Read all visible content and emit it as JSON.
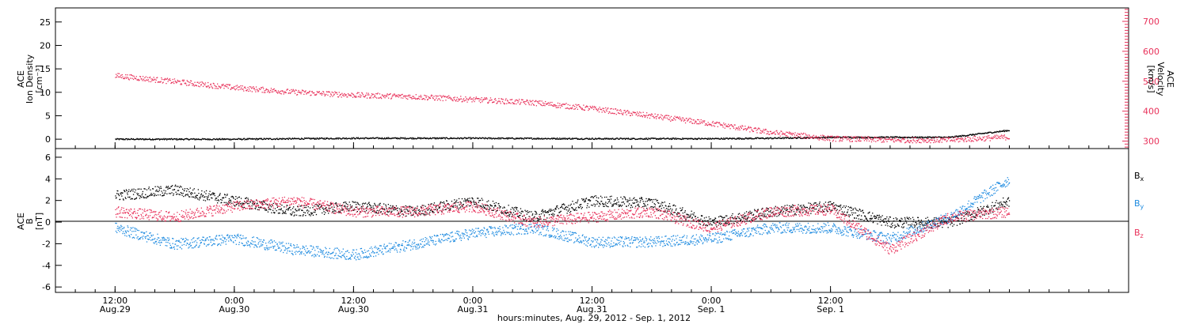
{
  "chart_data": [
    {
      "type": "scatter",
      "panel": "top",
      "ylabel_left": [
        "ACE",
        "Ion Density",
        "[cm⁻³]"
      ],
      "ylabel_right": [
        "ACE",
        "Velocity",
        "[km/s]"
      ],
      "left_ylim": [
        -2,
        28
      ],
      "left_yticks": [
        "0",
        "5",
        "10",
        "15",
        "20",
        "25"
      ],
      "right_ylim": [
        275,
        745
      ],
      "right_yticks": [
        "300",
        "400",
        "500",
        "600",
        "700"
      ],
      "series": [
        {
          "name": "Ion Density",
          "axis": "left",
          "color": "#000000",
          "x_hours": [
            0,
            12,
            24,
            36,
            48,
            60,
            66,
            72,
            78,
            84,
            86,
            88,
            90
          ],
          "values": [
            0.1,
            0.1,
            0.3,
            0.3,
            0.2,
            0.2,
            0.3,
            0.5,
            0.5,
            0.5,
            1.0,
            1.5,
            2.0
          ]
        },
        {
          "name": "Velocity",
          "axis": "right",
          "color": "#e8315a",
          "x_hours": [
            0,
            6,
            12,
            18,
            24,
            30,
            36,
            42,
            48,
            54,
            60,
            66,
            72,
            78,
            84,
            90
          ],
          "values": [
            520,
            500,
            480,
            465,
            455,
            450,
            440,
            430,
            410,
            385,
            360,
            330,
            310,
            305,
            305,
            315
          ]
        }
      ]
    },
    {
      "type": "scatter",
      "panel": "bottom",
      "ylabel_left": [
        "ACE",
        "B",
        "[nT]"
      ],
      "ylim": [
        -6.5,
        6.8
      ],
      "yticks": [
        "-6",
        "-4",
        "-2",
        "0",
        "2",
        "4",
        "6"
      ],
      "series": [
        {
          "name": "Bx",
          "color": "#000000",
          "x_hours": [
            0,
            6,
            12,
            18,
            24,
            30,
            36,
            42,
            48,
            54,
            60,
            66,
            72,
            78,
            84,
            90
          ],
          "values": [
            2.5,
            3.0,
            2.0,
            1.0,
            1.5,
            1.0,
            2.0,
            0.5,
            2.0,
            1.8,
            0.0,
            1.0,
            1.5,
            0.0,
            0.0,
            2.0
          ]
        },
        {
          "name": "By",
          "color": "#1e8be0",
          "x_hours": [
            0,
            6,
            12,
            18,
            24,
            30,
            36,
            42,
            48,
            54,
            60,
            66,
            72,
            78,
            84,
            90
          ],
          "values": [
            -0.5,
            -2.0,
            -1.5,
            -2.5,
            -3.0,
            -2.0,
            -1.0,
            -0.5,
            -1.8,
            -1.8,
            -1.5,
            -0.5,
            -0.5,
            -1.5,
            0.5,
            4.0
          ]
        },
        {
          "name": "Bz",
          "color": "#e8315a",
          "x_hours": [
            0,
            6,
            12,
            18,
            24,
            30,
            36,
            42,
            48,
            54,
            60,
            66,
            72,
            78,
            84,
            90
          ],
          "values": [
            1.0,
            0.5,
            1.5,
            2.0,
            1.0,
            1.0,
            1.5,
            0.0,
            0.5,
            1.0,
            -0.5,
            1.0,
            1.2,
            -2.5,
            0.5,
            1.0
          ]
        }
      ]
    }
  ],
  "x_axis": {
    "range_hours": [
      -6,
      102
    ],
    "ticks": [
      {
        "hour": 0,
        "time": "12:00",
        "date": "Aug.29"
      },
      {
        "hour": 12,
        "time": "0:00",
        "date": "Aug.30"
      },
      {
        "hour": 24,
        "time": "12:00",
        "date": "Aug.30"
      },
      {
        "hour": 36,
        "time": "0:00",
        "date": "Aug.31"
      },
      {
        "hour": 48,
        "time": "12:00",
        "date": "Aug.31"
      },
      {
        "hour": 60,
        "time": "0:00",
        "date": "Sep. 1"
      },
      {
        "hour": 72,
        "time": "12:00",
        "date": "Sep. 1"
      }
    ],
    "xlabel": "hours:minutes, Aug. 29, 2012 - Sep.  1, 2012"
  },
  "legend": {
    "items": [
      {
        "base": "B",
        "sub": "x",
        "color": "#000000"
      },
      {
        "base": "B",
        "sub": "y",
        "color": "#1e8be0"
      },
      {
        "base": "B",
        "sub": "z",
        "color": "#e8315a"
      }
    ]
  }
}
